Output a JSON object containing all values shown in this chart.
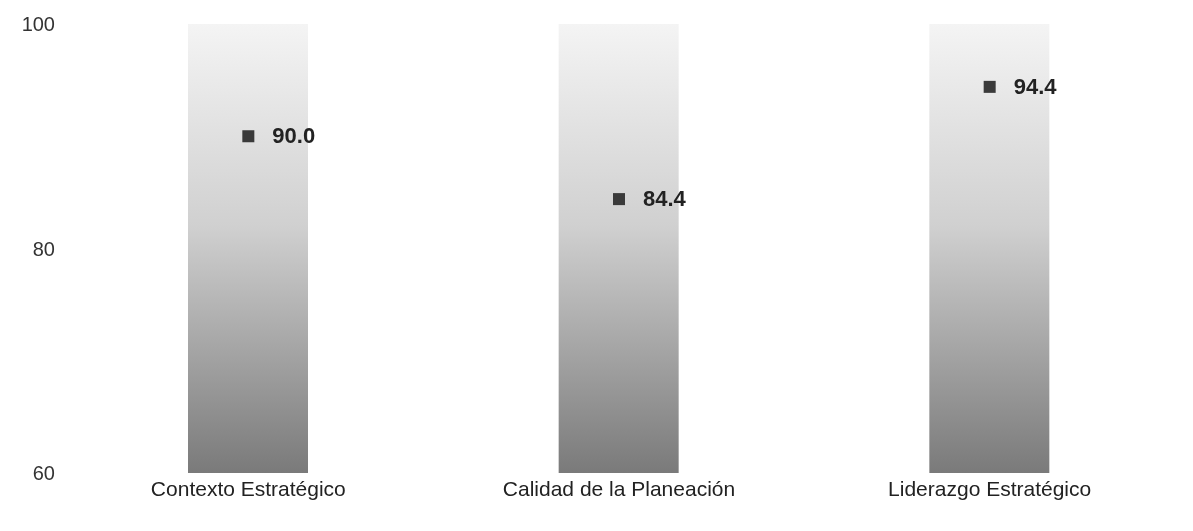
{
  "chart_data": {
    "type": "bar",
    "categories": [
      "Contexto Estratégico",
      "Calidad de la Planeación",
      "Liderazgo Estratégico"
    ],
    "ylim": [
      60,
      100
    ],
    "yticks": [
      60,
      80,
      100
    ],
    "marker": "square",
    "series": [
      {
        "color": "#7a7a7a",
        "values": [
          100,
          100,
          100
        ]
      },
      {
        "type": "scatter",
        "color": "#3a3a3a",
        "values": [
          90.0,
          84.4,
          94.4
        ],
        "value_labels": [
          "90.0",
          "84.4",
          "94.4"
        ]
      }
    ]
  }
}
